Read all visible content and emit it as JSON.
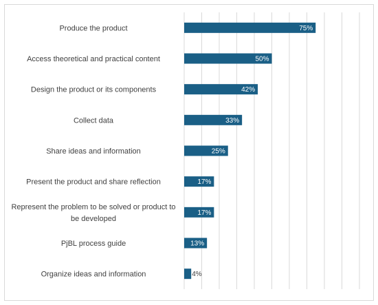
{
  "chart_data": {
    "type": "bar",
    "orientation": "horizontal",
    "categories": [
      "Produce the product",
      "Access theoretical and practical content",
      "Design the product or its components",
      "Collect data",
      "Share ideas and information",
      "Present the product and share reflection",
      "Represent the problem to be solved or product to be developed",
      "PjBL process guide",
      "Organize ideas and information"
    ],
    "category_lines": [
      [
        "Produce the product"
      ],
      [
        "Access theoretical and practical content"
      ],
      [
        "Design the product or its components"
      ],
      [
        "Collect data"
      ],
      [
        "Share ideas and information"
      ],
      [
        "Present the product and share reflection"
      ],
      [
        "Represent the problem to be solved or product to",
        "be developed"
      ],
      [
        "PjBL process guide"
      ],
      [
        "Organize ideas and information"
      ]
    ],
    "values": [
      75,
      50,
      42,
      33,
      25,
      17,
      17,
      13,
      4
    ],
    "value_labels": [
      "75%",
      "50%",
      "42%",
      "33%",
      "25%",
      "17%",
      "17%",
      "13%",
      "4%"
    ],
    "xlim": [
      0,
      100
    ],
    "grid": true,
    "legend": "none",
    "bar_color": "#1a5f86",
    "grid_color": "#d9d9d9",
    "label_color": "#404040"
  }
}
